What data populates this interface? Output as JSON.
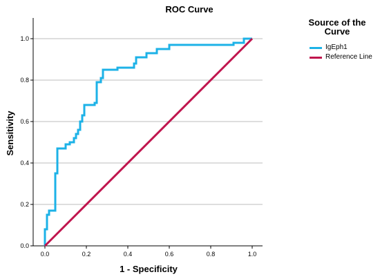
{
  "chart_data": {
    "type": "line",
    "title": "ROC Curve",
    "xlabel": "1 - Specificity",
    "ylabel": "Sensitivity",
    "xlim": [
      0,
      1
    ],
    "ylim": [
      0,
      1
    ],
    "x_ticks": [
      "0.0",
      "0.2",
      "0.4",
      "0.6",
      "0.8",
      "1.0"
    ],
    "y_ticks": [
      "0.0",
      "0.2",
      "0.4",
      "0.6",
      "0.8",
      "1.0"
    ],
    "grid": "horizontal",
    "legend": {
      "title": "Source of the Curve",
      "placement": "right"
    },
    "series": [
      {
        "name": "IgEph1",
        "color": "#1cb2e7",
        "x": [
          0,
          0,
          0.01,
          0.01,
          0.02,
          0.02,
          0.04,
          0.04,
          0.05,
          0.05,
          0.06,
          0.06,
          0.08,
          0.08,
          0.1,
          0.1,
          0.12,
          0.12,
          0.14,
          0.14,
          0.15,
          0.15,
          0.16,
          0.16,
          0.17,
          0.17,
          0.18,
          0.18,
          0.19,
          0.19,
          0.24,
          0.24,
          0.25,
          0.25,
          0.27,
          0.27,
          0.28,
          0.28,
          0.35,
          0.35,
          0.43,
          0.43,
          0.44,
          0.44,
          0.49,
          0.49,
          0.54,
          0.54,
          0.6,
          0.6,
          0.91,
          0.91,
          0.96,
          0.96,
          1.0
        ],
        "y": [
          0,
          0.08,
          0.08,
          0.15,
          0.15,
          0.17,
          0.17,
          0.17,
          0.17,
          0.35,
          0.35,
          0.47,
          0.47,
          0.47,
          0.47,
          0.49,
          0.49,
          0.5,
          0.5,
          0.52,
          0.52,
          0.54,
          0.54,
          0.56,
          0.56,
          0.6,
          0.6,
          0.63,
          0.63,
          0.68,
          0.68,
          0.69,
          0.69,
          0.79,
          0.79,
          0.81,
          0.81,
          0.85,
          0.85,
          0.86,
          0.86,
          0.88,
          0.88,
          0.91,
          0.91,
          0.93,
          0.93,
          0.95,
          0.95,
          0.97,
          0.97,
          0.98,
          0.98,
          1.0,
          1.0
        ]
      },
      {
        "name": "Reference Line",
        "color": "#c0144d",
        "x": [
          0,
          1
        ],
        "y": [
          0,
          1
        ]
      }
    ]
  }
}
